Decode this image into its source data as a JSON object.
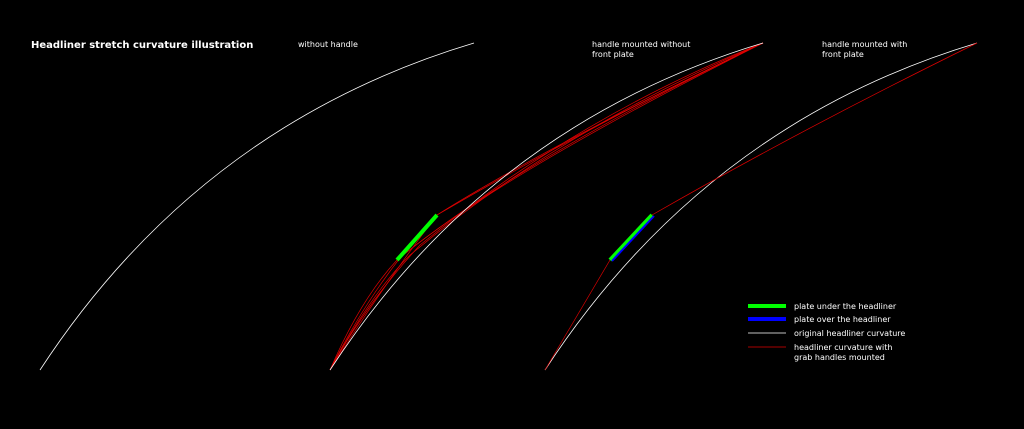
{
  "title": "Headliner stretch curvature illustration",
  "panels": [
    {
      "label": [
        "without handle"
      ]
    },
    {
      "label": [
        "handle mounted without",
        "front plate"
      ]
    },
    {
      "label": [
        "handle mounted with",
        "front plate"
      ]
    }
  ],
  "legend": [
    {
      "label": [
        "plate under the headliner"
      ]
    },
    {
      "label": [
        "plate over the headliner"
      ]
    },
    {
      "label": [
        "original headliner curvature"
      ]
    },
    {
      "label": [
        "headliner curvature with",
        "grab handles mounted"
      ]
    }
  ]
}
